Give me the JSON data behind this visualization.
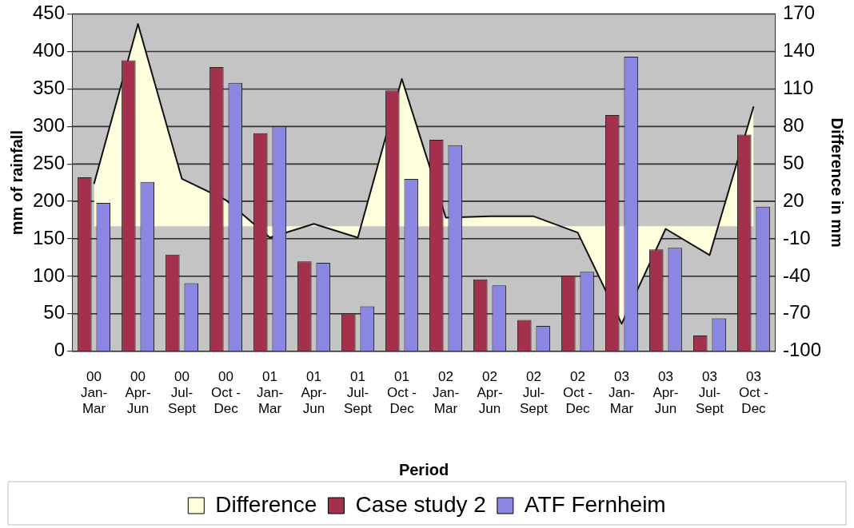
{
  "chart_data": {
    "type": "bar",
    "xlabel": "Period",
    "ylabel": "mm of rainfall",
    "y2label": "Difference in mm",
    "categories": [
      "00\nJan-\nMar",
      "00\nApr-\nJun",
      "00\nJul-\nSept",
      "00\nOct -\nDec",
      "01\nJan-\nMar",
      "01\nApr-\nJun",
      "01\nJul-\nSept",
      "01\nOct -\nDec",
      "02\nJan-\nMar",
      "02\nApr-\nJun",
      "02\nJul-\nSept",
      "02\nOct -\nDec",
      "03\nJan-\nMar",
      "03\nApr-\nJun",
      "03\nJul-\nSept",
      "03\nOct -\nDec"
    ],
    "series": [
      {
        "name": "Difference",
        "type": "area",
        "axis": "y2",
        "color": "#ffffdd",
        "values": [
          34,
          162,
          38,
          21,
          -9,
          2,
          -9,
          118,
          7,
          8,
          8,
          -5,
          -78,
          -2,
          -23,
          96
        ]
      },
      {
        "name": "Case study 2",
        "color": "#a3304c",
        "values": [
          232,
          388,
          129,
          379,
          291,
          120,
          51,
          348,
          282,
          96,
          42,
          101,
          315,
          136,
          21,
          289
        ]
      },
      {
        "name": "ATF Fernheim",
        "color": "#8a86e2",
        "values": [
          198,
          226,
          91,
          358,
          300,
          118,
          60,
          230,
          275,
          88,
          34,
          106,
          393,
          138,
          44,
          193
        ]
      }
    ],
    "ylim": [
      0,
      450
    ],
    "yticks": [
      0,
      50,
      100,
      150,
      200,
      250,
      300,
      350,
      400,
      450
    ],
    "y2lim": [
      -100,
      170
    ],
    "y2ticks": [
      -100,
      -70,
      -40,
      -10,
      20,
      50,
      80,
      110,
      140,
      170
    ],
    "grid": "y",
    "legend": "bottom"
  }
}
